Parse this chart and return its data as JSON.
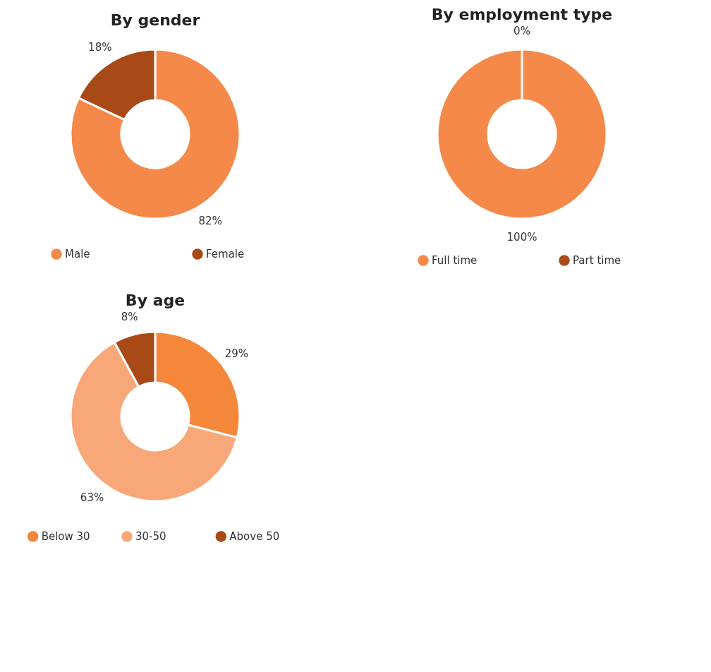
{
  "chart_data": [
    {
      "type": "donut",
      "title": "By gender",
      "categories": [
        "Male",
        "Female"
      ],
      "values": [
        82,
        18
      ],
      "colors": [
        "#f5894a",
        "#a84a17"
      ],
      "value_labels": [
        "82%",
        "18%"
      ],
      "legend": "bottom"
    },
    {
      "type": "donut",
      "title": "By employment type",
      "categories": [
        "Full time",
        "Part time"
      ],
      "values": [
        100,
        0
      ],
      "colors": [
        "#f4873a",
        "#a84a17"
      ],
      "value_labels": [
        "100%",
        "0%"
      ],
      "legend": "bottom"
    },
    {
      "type": "donut",
      "title": "By age",
      "categories": [
        "Below 30",
        "30-50",
        "Above 50"
      ],
      "values": [
        29,
        63,
        8
      ],
      "colors": [
        "#f4873a",
        "#f8a878",
        "#a84a17"
      ],
      "value_labels": [
        "29%",
        "63%",
        "8%"
      ],
      "legend": "bottom"
    }
  ]
}
